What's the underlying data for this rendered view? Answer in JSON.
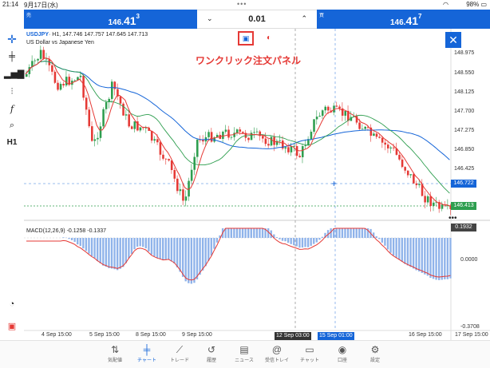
{
  "status": {
    "time": "21:14",
    "date": "9月17日(水)",
    "battery": "98%"
  },
  "trade": {
    "sell_label": "売",
    "sell_price_main": "146.",
    "sell_price_big": "41",
    "sell_price_sup": "3",
    "volume": "0.01",
    "buy_label": "買",
    "buy_price_main": "146.",
    "buy_price_big": "41",
    "buy_price_sup": "7"
  },
  "chart": {
    "symbol": "USDJPY",
    "symbol_suffix": "· H1, 147.746 147.757 147.645 147.713",
    "description": "US Dollar vs Japanese Yen",
    "one_click_label": "ワンクリック注文パネル",
    "timeframe": "H1",
    "macd_label": "MACD(12,26,9) -0.1258 -0.1337",
    "price_labels": [
      "148.975",
      "148.550",
      "148.125",
      "147.700",
      "147.275",
      "146.850",
      "146.425"
    ],
    "current_bid_tag": "146.413",
    "crosshair_price_tag": "146.722",
    "macd_labels": [
      "0.1932",
      "0.0000",
      "-0.3708"
    ],
    "x_labels": [
      "4 Sep 15:00",
      "5 Sep 15:00",
      "8 Sep 15:00",
      "9 Sep 15:00",
      "12 Sep 03:00",
      "15 Sep 01:00",
      "16 Sep 15:00",
      "17 Sep 15:00"
    ],
    "x_tag_dark": "12 Sep 03:00",
    "x_tag_blue": "15 Sep 01:00",
    "colors": {
      "accent": "#1565d8",
      "bull": "#2e9e4f",
      "bear": "#e53935"
    }
  },
  "tabs": [
    {
      "label": "気配値",
      "icon": "quotes-icon"
    },
    {
      "label": "チャート",
      "icon": "chart-icon"
    },
    {
      "label": "トレード",
      "icon": "trade-icon"
    },
    {
      "label": "履歴",
      "icon": "history-icon"
    },
    {
      "label": "ニュース",
      "icon": "news-icon"
    },
    {
      "label": "受信トレイ",
      "icon": "mail-icon"
    },
    {
      "label": "チャット",
      "icon": "chat-icon"
    },
    {
      "label": "口座",
      "icon": "account-icon"
    },
    {
      "label": "設定",
      "icon": "settings-icon"
    }
  ]
}
